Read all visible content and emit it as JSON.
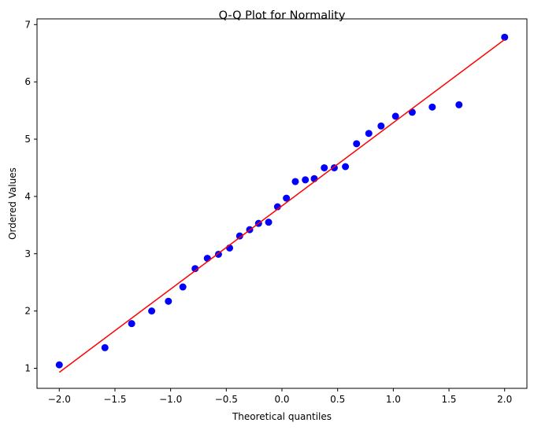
{
  "chart_data": {
    "type": "scatter",
    "title": "Q-Q Plot for Normality",
    "xlabel": "Theoretical quantiles",
    "ylabel": "Ordered Values",
    "xlim": [
      -2.2,
      2.2
    ],
    "ylim": [
      0.65,
      7.1
    ],
    "xticks": [
      -2.0,
      -1.5,
      -1.0,
      -0.5,
      0.0,
      0.5,
      1.0,
      1.5,
      2.0
    ],
    "xtick_labels": [
      "−2.0",
      "−1.5",
      "−1.0",
      "−0.5",
      "0.0",
      "0.5",
      "1.0",
      "1.5",
      "2.0"
    ],
    "yticks": [
      1,
      2,
      3,
      4,
      5,
      6,
      7
    ],
    "ytick_labels": [
      "1",
      "2",
      "3",
      "4",
      "5",
      "6",
      "7"
    ],
    "grid": false,
    "series": [
      {
        "type": "scatter",
        "color": "#0000ff",
        "x": [
          -2.0,
          -1.59,
          -1.35,
          -1.17,
          -1.02,
          -0.89,
          -0.78,
          -0.67,
          -0.57,
          -0.47,
          -0.38,
          -0.29,
          -0.21,
          -0.12,
          -0.04,
          0.04,
          0.12,
          0.21,
          0.29,
          0.38,
          0.47,
          0.57,
          0.67,
          0.78,
          0.89,
          1.02,
          1.17,
          1.35,
          1.59,
          2.0
        ],
        "y": [
          1.06,
          1.36,
          1.78,
          2.0,
          2.17,
          2.42,
          2.74,
          2.92,
          2.99,
          3.1,
          3.31,
          3.42,
          3.53,
          3.55,
          3.82,
          3.97,
          4.26,
          4.29,
          4.31,
          4.5,
          4.5,
          4.52,
          4.92,
          5.1,
          5.23,
          5.4,
          5.47,
          5.56,
          5.6,
          6.78
        ]
      },
      {
        "type": "line",
        "color": "#ff0000",
        "x": [
          -2.0,
          2.0
        ],
        "y": [
          0.93,
          6.74
        ]
      }
    ]
  }
}
